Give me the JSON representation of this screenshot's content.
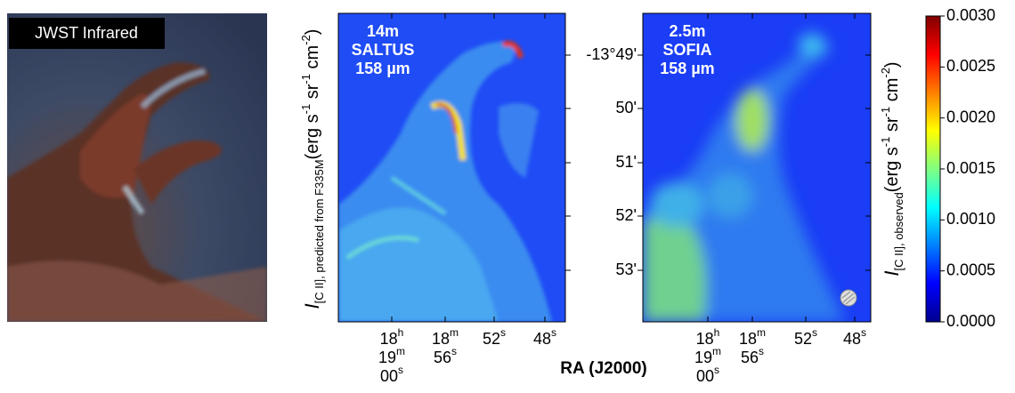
{
  "left_panel": {
    "label": "JWST Infrared"
  },
  "middle_panel": {
    "lines": [
      "14m",
      "SALTUS",
      "158 µm"
    ]
  },
  "right_panel": {
    "lines": [
      "2.5m",
      "SOFIA",
      "158 µm"
    ]
  },
  "dec_ticks": [
    "-13°49'",
    "50'",
    "51'",
    "52'",
    "53'"
  ],
  "ra_ticks": [
    [
      [
        "18",
        "h"
      ],
      [
        "19",
        "m"
      ],
      [
        "00",
        "s"
      ]
    ],
    [
      [
        "18",
        "m"
      ],
      [
        "56",
        "s"
      ]
    ],
    [
      [
        "52",
        "s"
      ]
    ],
    [
      [
        "48",
        "s"
      ]
    ]
  ],
  "x_label": "RA (J2000)",
  "left_y_label": {
    "symbol": "I",
    "subscript": "[C II], predicted from F335M",
    "unit": [
      "(erg s",
      "-1",
      " sr",
      "-1",
      " cm",
      "-2",
      ")"
    ]
  },
  "right_y_label": {
    "symbol": "I",
    "subscript": "[C II], observed",
    "unit": [
      "(erg s",
      "-1",
      " sr",
      "-1",
      " cm",
      "-2",
      ")"
    ]
  },
  "colorbar_ticks": [
    "0.0030",
    "0.0025",
    "0.0020",
    "0.0015",
    "0.0010",
    "0.0005",
    "0.0000"
  ]
}
